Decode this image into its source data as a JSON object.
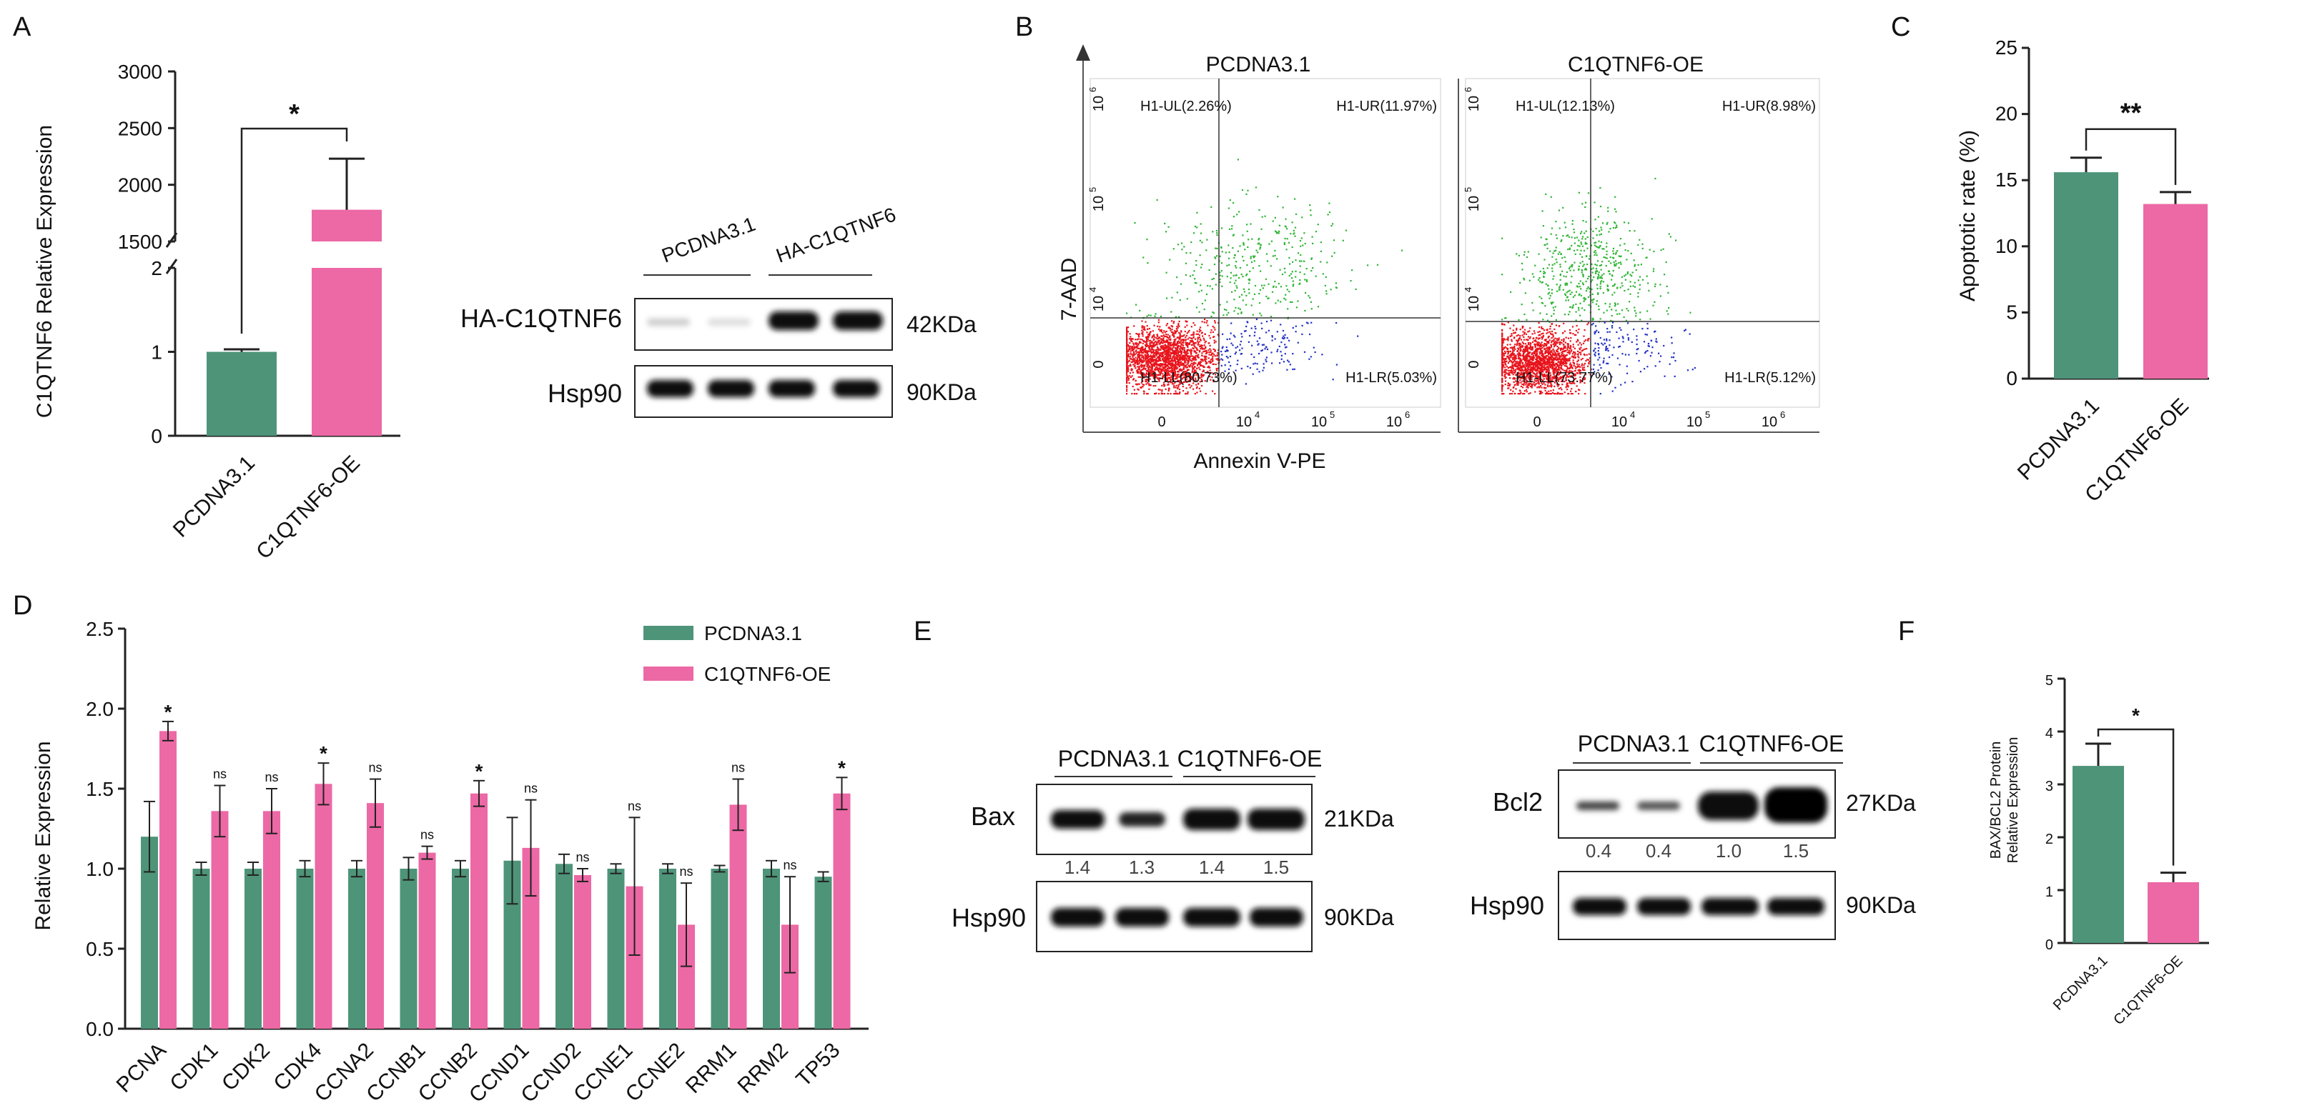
{
  "panel_labels": [
    "A",
    "B",
    "C",
    "D",
    "E",
    "F"
  ],
  "colors": {
    "control": "#4e9479",
    "oe": "#ec69a5",
    "flow_red": "#e8141c",
    "flow_green": "#2fb534",
    "flow_blue": "#2130c4"
  },
  "chart_data": [
    {
      "id": "A",
      "type": "bar",
      "categories": [
        "PCDNA3.1",
        "C1QTNF6-OE"
      ],
      "values": [
        1.0,
        1780
      ],
      "errors": [
        0.03,
        450
      ],
      "ylabel": "C1QTNF6 Relative Expression",
      "broken_axis": true,
      "lower_ticks": [
        "0",
        "1",
        "2"
      ],
      "upper_ticks": [
        "1500",
        "2000",
        "2500",
        "3000"
      ],
      "lower_range": [
        0,
        2
      ],
      "upper_range": [
        1500,
        3000
      ],
      "significance": "*"
    },
    {
      "id": "C",
      "type": "bar",
      "categories": [
        "PCDNA3.1",
        "C1QTNF6-OE"
      ],
      "values": [
        15.6,
        13.2
      ],
      "errors": [
        1.1,
        0.9
      ],
      "ylabel": "Apoptotic rate (%)",
      "ylim": [
        0,
        25
      ],
      "yticks": [
        "0",
        "5",
        "10",
        "15",
        "20",
        "25"
      ],
      "significance": "**"
    },
    {
      "id": "D",
      "type": "bar",
      "categories": [
        "PCNA",
        "CDK1",
        "CDK2",
        "CDK4",
        "CCNA2",
        "CCNB1",
        "CCNB2",
        "CCND1",
        "CCND2",
        "CCNE1",
        "CCNE2",
        "RRM1",
        "RRM2",
        "TP53"
      ],
      "series": [
        {
          "name": "PCDNA3.1",
          "values": [
            1.2,
            1.0,
            1.0,
            1.0,
            1.0,
            1.0,
            1.0,
            1.05,
            1.03,
            1.0,
            1.0,
            1.0,
            1.0,
            0.95
          ],
          "errors": [
            0.22,
            0.04,
            0.04,
            0.05,
            0.05,
            0.07,
            0.05,
            0.27,
            0.06,
            0.03,
            0.03,
            0.02,
            0.05,
            0.03
          ]
        },
        {
          "name": "C1QTNF6-OE",
          "values": [
            1.86,
            1.36,
            1.36,
            1.53,
            1.41,
            1.1,
            1.47,
            1.13,
            0.96,
            0.89,
            0.65,
            1.4,
            0.65,
            1.47
          ],
          "errors": [
            0.06,
            0.16,
            0.14,
            0.13,
            0.15,
            0.04,
            0.08,
            0.3,
            0.04,
            0.43,
            0.26,
            0.16,
            0.3,
            0.1
          ]
        }
      ],
      "significance": [
        "*",
        "ns",
        "ns",
        "*",
        "ns",
        "ns",
        "*",
        "ns",
        "ns",
        "ns",
        "ns",
        "ns",
        "ns",
        "*"
      ],
      "ylabel": "Relative Expression",
      "ylim": [
        0,
        2.5
      ],
      "yticks": [
        "0.0",
        "0.5",
        "1.0",
        "1.5",
        "2.0",
        "2.5"
      ],
      "legend_position": "top-right"
    },
    {
      "id": "F",
      "type": "bar",
      "categories": [
        "PCDNA3.1",
        "C1QTNF6-OE"
      ],
      "values": [
        3.35,
        1.15
      ],
      "errors": [
        0.42,
        0.18
      ],
      "ylabel_lines": [
        "BAX/BCL2 Protein",
        "Relative Expression"
      ],
      "ylim": [
        0,
        5
      ],
      "yticks": [
        "0",
        "1",
        "2",
        "3",
        "4",
        "5"
      ],
      "significance": "*"
    }
  ],
  "panel_a_blot": {
    "groups": [
      "PCDNA3.1",
      "HA-C1QTNF6"
    ],
    "rows": [
      {
        "label": "HA-C1QTNF6",
        "kda": "42KDa"
      },
      {
        "label": "Hsp90",
        "kda": "90KDa"
      }
    ]
  },
  "panel_b": {
    "plots": [
      {
        "title": "PCDNA3.1",
        "quadrants": [
          "H1-UL(2.26%)",
          "H1-UR(11.97%)",
          "H1-LL(80.73%)",
          "H1-LR(5.03%)"
        ]
      },
      {
        "title": "C1QTNF6-OE",
        "quadrants": [
          "H1-UL(12.13%)",
          "H1-UR(8.98%)",
          "H1-LL(73.77%)",
          "H1-LR(5.12%)"
        ]
      }
    ],
    "xlabel": "Annexin V-PE",
    "ylabel": "7-AAD",
    "ticks": [
      "0",
      "10",
      "10",
      "10"
    ],
    "tick_exps": [
      "4",
      "5",
      "6"
    ]
  },
  "panel_e": {
    "blots": [
      {
        "groups": [
          "PCDNA3.1",
          "C1QTNF6-OE"
        ],
        "target": "Bax",
        "target_kda": "21KDa",
        "densities": [
          "1.4",
          "1.3",
          "1.4",
          "1.5"
        ],
        "loading": "Hsp90",
        "loading_kda": "90KDa"
      },
      {
        "groups": [
          "PCDNA3.1",
          "C1QTNF6-OE"
        ],
        "target": "Bcl2",
        "target_kda": "27KDa",
        "densities": [
          "0.4",
          "0.4",
          "1.0",
          "1.5"
        ],
        "loading": "Hsp90",
        "loading_kda": "90KDa"
      }
    ]
  }
}
